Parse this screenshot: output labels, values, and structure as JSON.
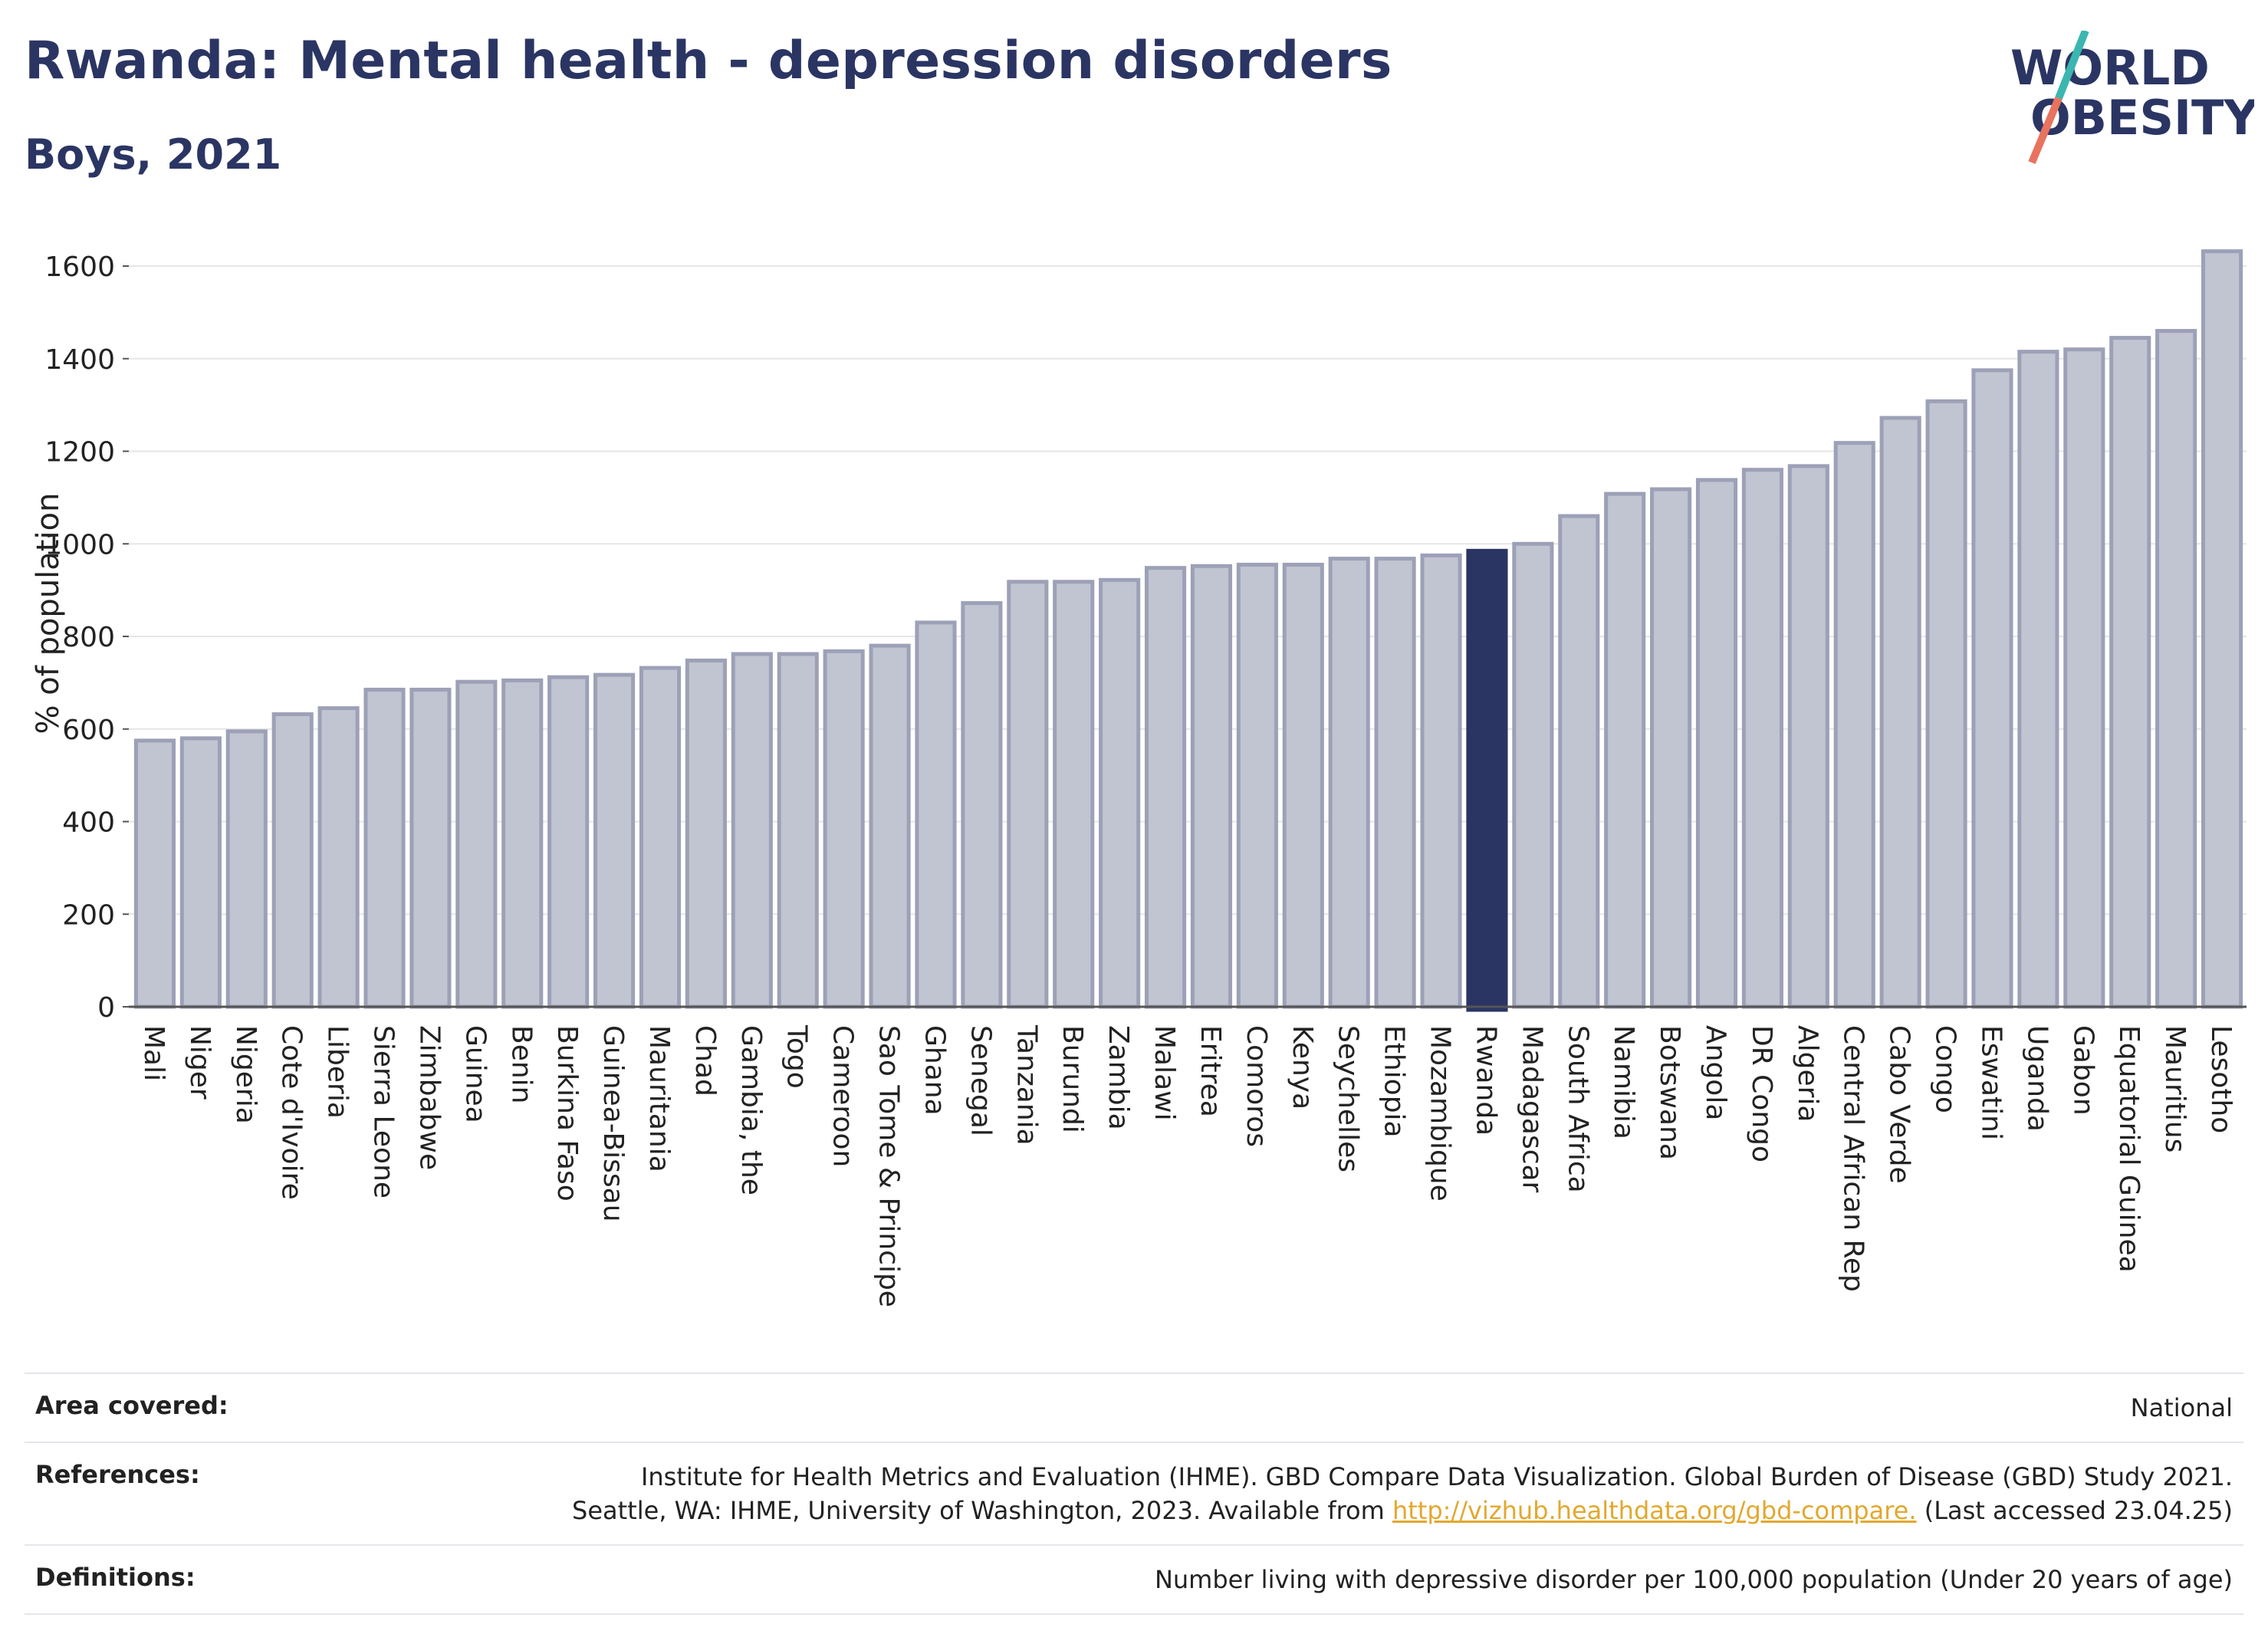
{
  "header": {
    "title": "Rwanda: Mental health - depression disorders",
    "subtitle": "Boys, 2021"
  },
  "logo": {
    "line1": "WORLD",
    "line2": "OBESITY",
    "colors": {
      "text": "#2b3563",
      "slash_top": "#3bb6b0",
      "slash_bottom": "#e8735f"
    }
  },
  "colors": {
    "bar_fill": "#c1c4d1",
    "bar_stroke": "#9ca1b7",
    "highlight": "#2b3563",
    "grid": "#e6e6e6"
  },
  "chart_data": {
    "type": "bar",
    "ylabel": "% of population",
    "ylim": [
      0,
      1650
    ],
    "yticks": [
      0,
      200,
      400,
      600,
      800,
      1000,
      1200,
      1400,
      1600
    ],
    "grid": true,
    "highlight": "Rwanda",
    "categories": [
      "Mali",
      "Niger",
      "Nigeria",
      "Cote d'Ivoire",
      "Liberia",
      "Sierra Leone",
      "Zimbabwe",
      "Guinea",
      "Benin",
      "Burkina Faso",
      "Guinea-Bissau",
      "Mauritania",
      "Chad",
      "Gambia, the",
      "Togo",
      "Cameroon",
      "Sao Tome & Principe",
      "Ghana",
      "Senegal",
      "Tanzania",
      "Burundi",
      "Zambia",
      "Malawi",
      "Eritrea",
      "Comoros",
      "Kenya",
      "Seychelles",
      "Ethiopia",
      "Mozambique",
      "Rwanda",
      "Madagascar",
      "South Africa",
      "Namibia",
      "Botswana",
      "Angola",
      "DR Congo",
      "Algeria",
      "Central African Rep",
      "Cabo Verde",
      "Congo",
      "Eswatini",
      "Uganda",
      "Gabon",
      "Equatorial Guinea",
      "Mauritius",
      "Lesotho"
    ],
    "values": [
      575,
      580,
      595,
      632,
      645,
      685,
      685,
      702,
      705,
      712,
      717,
      732,
      748,
      762,
      762,
      768,
      780,
      830,
      872,
      918,
      918,
      922,
      948,
      952,
      955,
      955,
      968,
      968,
      975,
      985,
      1000,
      1060,
      1108,
      1118,
      1138,
      1160,
      1168,
      1218,
      1272,
      1308,
      1375,
      1415,
      1420,
      1445,
      1460,
      1632
    ]
  },
  "info": {
    "area_label": "Area covered:",
    "area_value": "National",
    "references_label": "References:",
    "references_line1": "Institute for Health Metrics and Evaluation (IHME). GBD Compare Data Visualization. Global Burden of Disease (GBD) Study 2021.",
    "references_line2_pre": "Seattle, WA: IHME, University of Washington, 2023. Available from",
    "references_link": "http://vizhub.healthdata.org/gbd-compare.",
    "references_line2_post": "(Last accessed 23.04.25)",
    "definitions_label": "Definitions:",
    "definitions_value": "Number living with depressive disorder per 100,000 population (Under 20 years of age)"
  }
}
